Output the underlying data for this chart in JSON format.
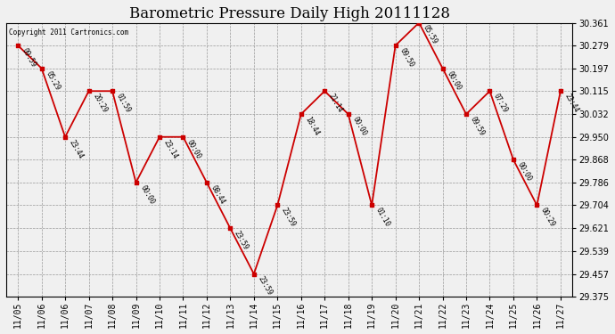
{
  "title": "Barometric Pressure Daily High 20111128",
  "copyright": "Copyright 2011 Cartronics.com",
  "y_min": 29.375,
  "y_max": 30.361,
  "y_ticks": [
    29.375,
    29.457,
    29.539,
    29.621,
    29.704,
    29.786,
    29.868,
    29.95,
    30.032,
    30.115,
    30.197,
    30.279,
    30.361
  ],
  "x_labels": [
    "11/05",
    "11/06",
    "11/06",
    "11/07",
    "11/08",
    "11/09",
    "11/10",
    "11/11",
    "11/12",
    "11/13",
    "11/14",
    "11/15",
    "11/16",
    "11/17",
    "11/18",
    "11/19",
    "11/20",
    "11/21",
    "11/22",
    "11/23",
    "11/24",
    "11/25",
    "11/26",
    "11/27"
  ],
  "points": [
    {
      "idx": 0,
      "label": "11/05",
      "time": "09:59",
      "value": 30.279
    },
    {
      "idx": 1,
      "label": "11/06",
      "time": "05:29",
      "value": 30.197
    },
    {
      "idx": 2,
      "label": "11/06",
      "time": "23:44",
      "value": 29.95
    },
    {
      "idx": 3,
      "label": "11/07",
      "time": "20:29",
      "value": 30.115
    },
    {
      "idx": 4,
      "label": "11/08",
      "time": "01:59",
      "value": 30.115
    },
    {
      "idx": 5,
      "label": "11/09",
      "time": "00:00",
      "value": 29.786
    },
    {
      "idx": 6,
      "label": "11/10",
      "time": "23:14",
      "value": 29.95
    },
    {
      "idx": 7,
      "label": "11/11",
      "time": "00:00",
      "value": 29.95
    },
    {
      "idx": 8,
      "label": "11/12",
      "time": "08:44",
      "value": 29.786
    },
    {
      "idx": 9,
      "label": "11/13",
      "time": "23:59",
      "value": 29.621
    },
    {
      "idx": 10,
      "label": "11/14",
      "time": "23:59",
      "value": 29.457
    },
    {
      "idx": 11,
      "label": "11/15",
      "time": "23:59",
      "value": 29.704
    },
    {
      "idx": 12,
      "label": "11/16",
      "time": "18:44",
      "value": 30.032
    },
    {
      "idx": 13,
      "label": "11/17",
      "time": "21:14",
      "value": 30.115
    },
    {
      "idx": 14,
      "label": "11/18",
      "time": "00:00",
      "value": 30.032
    },
    {
      "idx": 15,
      "label": "11/19",
      "time": "01:10",
      "value": 29.704
    },
    {
      "idx": 16,
      "label": "11/20",
      "time": "09:50",
      "value": 30.279
    },
    {
      "idx": 17,
      "label": "11/21",
      "time": "05:59",
      "value": 30.361
    },
    {
      "idx": 18,
      "label": "11/22",
      "time": "00:00",
      "value": 30.197
    },
    {
      "idx": 19,
      "label": "11/23",
      "time": "09:59",
      "value": 30.032
    },
    {
      "idx": 20,
      "label": "11/24",
      "time": "07:29",
      "value": 30.115
    },
    {
      "idx": 21,
      "label": "11/25",
      "time": "00:00",
      "value": 29.868
    },
    {
      "idx": 22,
      "label": "11/26",
      "time": "00:29",
      "value": 29.704
    },
    {
      "idx": 23,
      "label": "11/27",
      "time": "23:44",
      "value": 30.115
    }
  ],
  "line_color": "#cc0000",
  "marker_color": "#cc0000",
  "bg_color": "#f0f0f0",
  "plot_bg_color": "#f0f0f0",
  "grid_color": "#999999",
  "title_fontsize": 12,
  "tick_label_fontsize": 7,
  "annotation_fontsize": 5.5
}
